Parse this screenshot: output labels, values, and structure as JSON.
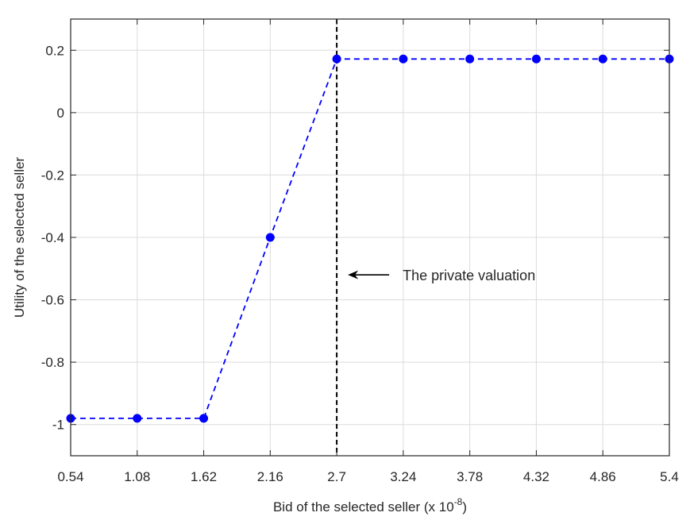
{
  "chart_data": {
    "type": "line",
    "title": "",
    "xlabel": "Bid of the selected seller (x 10",
    "xlabel_exponent": "-8",
    "xlabel_suffix": ")",
    "ylabel": "Utility of the selected seller",
    "xlim": [
      0.54,
      5.4
    ],
    "ylim": [
      -1.1,
      0.3
    ],
    "x_ticks": [
      0.54,
      1.08,
      1.62,
      2.16,
      2.7,
      3.24,
      3.78,
      4.32,
      4.86,
      5.4
    ],
    "x_tick_labels": [
      "0.54",
      "1.08",
      "1.62",
      "2.16",
      "2.7",
      "3.24",
      "3.78",
      "4.32",
      "4.86",
      "5.4"
    ],
    "y_ticks": [
      0.2,
      0,
      -0.2,
      -0.4,
      -0.6,
      -0.8,
      -1
    ],
    "y_tick_labels": [
      "0.2",
      "0",
      "-0.2",
      "-0.4",
      "-0.6",
      "-0.8",
      "-1"
    ],
    "grid": true,
    "series": [
      {
        "color": "#0000ff",
        "line_style": "dashed",
        "marker": "circle",
        "x": [
          0.54,
          1.08,
          1.62,
          2.16,
          2.7,
          3.24,
          3.78,
          4.32,
          4.86,
          5.4
        ],
        "y": [
          -0.98,
          -0.98,
          -0.98,
          -0.4,
          0.172,
          0.172,
          0.172,
          0.172,
          0.172,
          0.172
        ]
      }
    ],
    "reference_line": {
      "orientation": "vertical",
      "x": 2.7,
      "color": "#000000",
      "line_style": "dashed"
    },
    "annotation": {
      "text": "The private valuation",
      "arrow": "left",
      "y": -0.52
    }
  }
}
